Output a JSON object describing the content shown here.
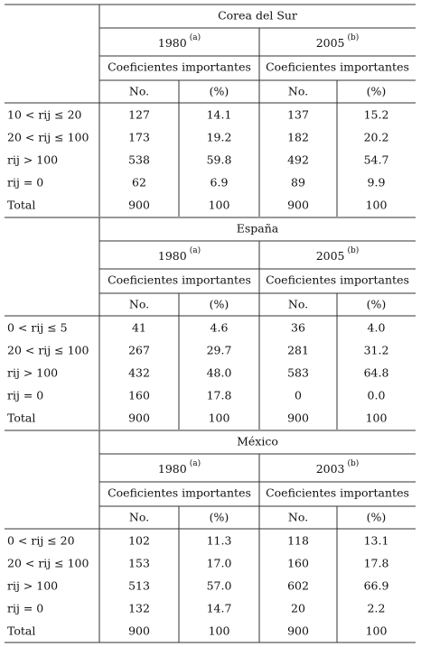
{
  "table": {
    "blocks": [
      {
        "country": "Corea del Sur",
        "periods": [
          {
            "year": "1980",
            "note": "(a)"
          },
          {
            "year": "2005",
            "note": "(b)"
          }
        ],
        "subheader": [
          "Coeficientes importantes",
          "Coeficientes importantes"
        ],
        "columns": [
          "No.",
          "(%)",
          "No.",
          "(%)"
        ],
        "rows": [
          [
            "10 < rij ≤ 20",
            "127",
            "14.1",
            "137",
            "15.2"
          ],
          [
            "20 < rij ≤ 100",
            "173",
            "19.2",
            "182",
            "20.2"
          ],
          [
            "rij > 100",
            "538",
            "59.8",
            "492",
            "54.7"
          ],
          [
            "rij = 0",
            "62",
            "6.9",
            "89",
            "9.9"
          ],
          [
            "Total",
            "900",
            "100",
            "900",
            "100"
          ]
        ]
      },
      {
        "country": "España",
        "periods": [
          {
            "year": "1980",
            "note": "(a)"
          },
          {
            "year": "2005",
            "note": "(b)"
          }
        ],
        "subheader": [
          "Coeficientes importantes",
          "Coeficientes importantes"
        ],
        "columns": [
          "No.",
          "(%)",
          "No.",
          "(%)"
        ],
        "rows": [
          [
            "0 < rij ≤ 5",
            "41",
            "4.6",
            "36",
            "4.0"
          ],
          [
            "20 < rij ≤ 100",
            "267",
            "29.7",
            "281",
            "31.2"
          ],
          [
            "rij > 100",
            "432",
            "48.0",
            "583",
            "64.8"
          ],
          [
            "rij = 0",
            "160",
            "17.8",
            "0",
            "0.0"
          ],
          [
            "Total",
            "900",
            "100",
            "900",
            "100"
          ]
        ]
      },
      {
        "country": "México",
        "periods": [
          {
            "year": "1980",
            "note": "(a)"
          },
          {
            "year": "2003",
            "note": "(b)"
          }
        ],
        "subheader": [
          "Coeficientes importantes",
          "Coeficientes importantes"
        ],
        "columns": [
          "No.",
          "(%)",
          "No.",
          "(%)"
        ],
        "rows": [
          [
            "0 < rij ≤ 20",
            "102",
            "11.3",
            "118",
            "13.1"
          ],
          [
            "20 < rij ≤ 100",
            "153",
            "17.0",
            "160",
            "17.8"
          ],
          [
            "rij > 100",
            "513",
            "57.0",
            "602",
            "66.9"
          ],
          [
            "rij = 0",
            "132",
            "14.7",
            "20",
            "2.2"
          ],
          [
            "Total",
            "900",
            "100",
            "900",
            "100"
          ]
        ]
      }
    ]
  }
}
